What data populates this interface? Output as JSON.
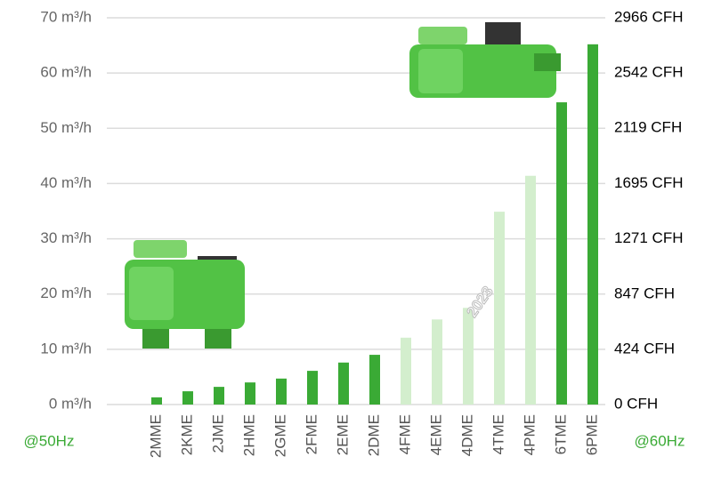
{
  "chart_data": {
    "type": "bar",
    "categories": [
      "2MME",
      "2KME",
      "2JME",
      "2HME",
      "2GME",
      "2FME",
      "2EME",
      "2DME",
      "4FME",
      "4EME",
      "4DME",
      "4TME",
      "4PME",
      "6TME",
      "6PME"
    ],
    "values": [
      1.3,
      2.4,
      3.2,
      4.0,
      4.7,
      6.1,
      7.6,
      9.0,
      12.1,
      15.4,
      17.5,
      34.9,
      41.4,
      54.7,
      65.2
    ],
    "colors": [
      "#3aaa35",
      "#3aaa35",
      "#3aaa35",
      "#3aaa35",
      "#3aaa35",
      "#3aaa35",
      "#3aaa35",
      "#3aaa35",
      "#d3eecd",
      "#d3eecd",
      "#d3eecd",
      "#d3eecd",
      "#d3eecd",
      "#3aaa35",
      "#3aaa35"
    ],
    "ylim": [
      0,
      70
    ],
    "yticks": [
      {
        "value": 0,
        "label": "0 m³/h"
      },
      {
        "value": 10,
        "label": "10 m³/h"
      },
      {
        "value": 20,
        "label": "20 m³/h"
      },
      {
        "value": 30,
        "label": "30 m³/h"
      },
      {
        "value": 40,
        "label": "40 m³/h"
      },
      {
        "value": 50,
        "label": "50 m³/h"
      },
      {
        "value": 60,
        "label": "60 m³/h"
      },
      {
        "value": 70,
        "label": "70 m³/h"
      }
    ],
    "y2lim": [
      0,
      2966
    ],
    "y2ticks": [
      {
        "value": 0,
        "label": "0 CFH"
      },
      {
        "value": 424,
        "label": "424 CFH"
      },
      {
        "value": 847,
        "label": "847 CFH"
      },
      {
        "value": 1271,
        "label": "1271 CFH"
      },
      {
        "value": 1695,
        "label": "1695 CFH"
      },
      {
        "value": 2119,
        "label": "2119 CFH"
      },
      {
        "value": 2542,
        "label": "2542 CFH"
      },
      {
        "value": 2966,
        "label": "2966 CFH"
      }
    ],
    "grid": true,
    "left_note": "@50Hz",
    "right_note": "@60Hz",
    "watermark": "2023"
  }
}
